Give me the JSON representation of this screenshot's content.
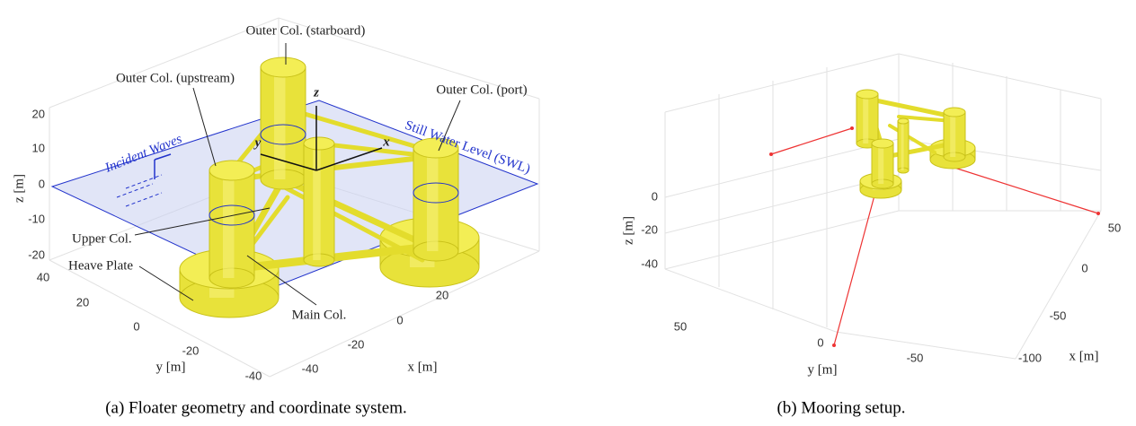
{
  "panel_a": {
    "caption": "(a) Floater geometry and coordinate system.",
    "annotations": [
      "Outer Col. (starboard)",
      "Outer Col. (upstream)",
      "Outer Col. (port)",
      "Upper Col.",
      "Heave Plate",
      "Main Col."
    ],
    "water_labels": [
      "Incident Waves",
      "Still Water Level (SWL)"
    ],
    "frame_axes": [
      "z",
      "y",
      "x"
    ],
    "axis_labels": {
      "z": "z [m]",
      "y": "y [m]",
      "x": "x [m]"
    },
    "z_ticks": [
      20,
      10,
      0,
      -10,
      -20
    ],
    "y_ticks": [
      40,
      20,
      0,
      -20,
      -40
    ],
    "x_ticks": [
      -40,
      -20,
      0,
      20
    ]
  },
  "panel_b": {
    "caption": "(b) Mooring setup.",
    "axis_labels": {
      "z": "z [m]",
      "y": "y [m]",
      "x": "x [m]"
    },
    "z_ticks": [
      0,
      -20,
      -40
    ],
    "y_ticks": [
      50,
      0,
      -50
    ],
    "x_ticks": [
      50,
      0,
      -50,
      -100
    ]
  }
}
